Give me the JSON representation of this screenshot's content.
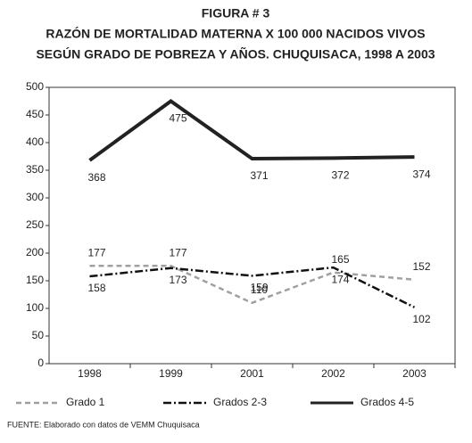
{
  "chart_data": {
    "type": "line",
    "title": "FIGURA # 3",
    "subtitle": [
      "RAZÓN DE MORTALIDAD MATERNA X 100 000 NACIDOS VIVOS",
      "SEGÚN GRADO DE POBREZA Y AÑOS. CHUQUISACA, 1998 A 2003"
    ],
    "categories": [
      "1998",
      "1999",
      "2001",
      "2002",
      "2003"
    ],
    "series": [
      {
        "name": "Grado 1",
        "color": "#a0a0a0",
        "dash": "6,4",
        "width": 2.5,
        "values": [
          177,
          177,
          110,
          165,
          152
        ]
      },
      {
        "name": "Grados 2-3",
        "color": "#111111",
        "dash": "9,3,2,3",
        "width": 2.5,
        "values": [
          158,
          173,
          159,
          174,
          102
        ]
      },
      {
        "name": "Grados 4-5",
        "color": "#222222",
        "width": 4,
        "values": [
          368,
          475,
          371,
          372,
          374
        ]
      }
    ],
    "ylim": [
      0,
      500
    ],
    "yticks": [
      0,
      50,
      100,
      150,
      200,
      250,
      300,
      350,
      400,
      450,
      500
    ],
    "source": "FUENTE: Elaborado con datos de VEMM Chuquisaca"
  }
}
